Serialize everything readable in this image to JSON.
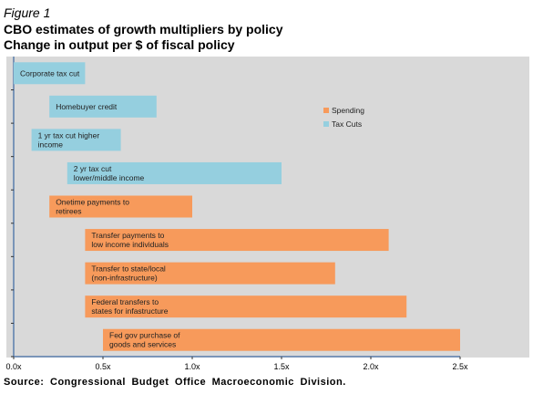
{
  "figure_label": "Figure 1",
  "title_line1": "CBO estimates of growth multipliers by policy",
  "title_line2": "Change in output per $ of fiscal policy",
  "source": "Source: Congressional Budget Office Macroeconomic Division.",
  "colors": {
    "spending": "#f79a5b",
    "tax_cuts": "#95cfdf",
    "plot_bg": "#d9d9d9",
    "axis": "#5a7fae"
  },
  "chart_data": {
    "type": "bar",
    "orientation": "horizontal",
    "title": "CBO estimates of growth multipliers by policy",
    "subtitle": "Change in output per $ of fiscal policy",
    "xlim": [
      0,
      2.5
    ],
    "xticks": [
      "0.0x",
      "0.5x",
      "1.0x",
      "1.5x",
      "2.0x",
      "2.5x"
    ],
    "legend": {
      "position": "top-right",
      "entries": [
        {
          "name": "Spending",
          "color": "#f79a5b"
        },
        {
          "name": "Tax Cuts",
          "color": "#95cfdf"
        }
      ]
    },
    "bars": [
      {
        "label": [
          "Corporate tax cut"
        ],
        "series": "Tax Cuts",
        "low": 0.0,
        "high": 0.4
      },
      {
        "label": [
          "Homebuyer credit"
        ],
        "series": "Tax Cuts",
        "low": 0.2,
        "high": 0.8
      },
      {
        "label": [
          "1 yr tax cut higher",
          "income"
        ],
        "series": "Tax Cuts",
        "low": 0.1,
        "high": 0.6
      },
      {
        "label": [
          "2 yr tax cut",
          "lower/middle income"
        ],
        "series": "Tax Cuts",
        "low": 0.3,
        "high": 1.5
      },
      {
        "label": [
          "Onetime payments to",
          "retirees"
        ],
        "series": "Spending",
        "low": 0.2,
        "high": 1.0
      },
      {
        "label": [
          "Transfer payments to",
          "low income individuals"
        ],
        "series": "Spending",
        "low": 0.4,
        "high": 2.1
      },
      {
        "label": [
          "Transfer to state/local",
          "(non-infrastructure)"
        ],
        "series": "Spending",
        "low": 0.4,
        "high": 1.8
      },
      {
        "label": [
          "Federal transfers to",
          "states for infastructure"
        ],
        "series": "Spending",
        "low": 0.4,
        "high": 2.2
      },
      {
        "label": [
          "Fed gov purchase of",
          "goods and services"
        ],
        "series": "Spending",
        "low": 0.5,
        "high": 2.5
      }
    ]
  }
}
